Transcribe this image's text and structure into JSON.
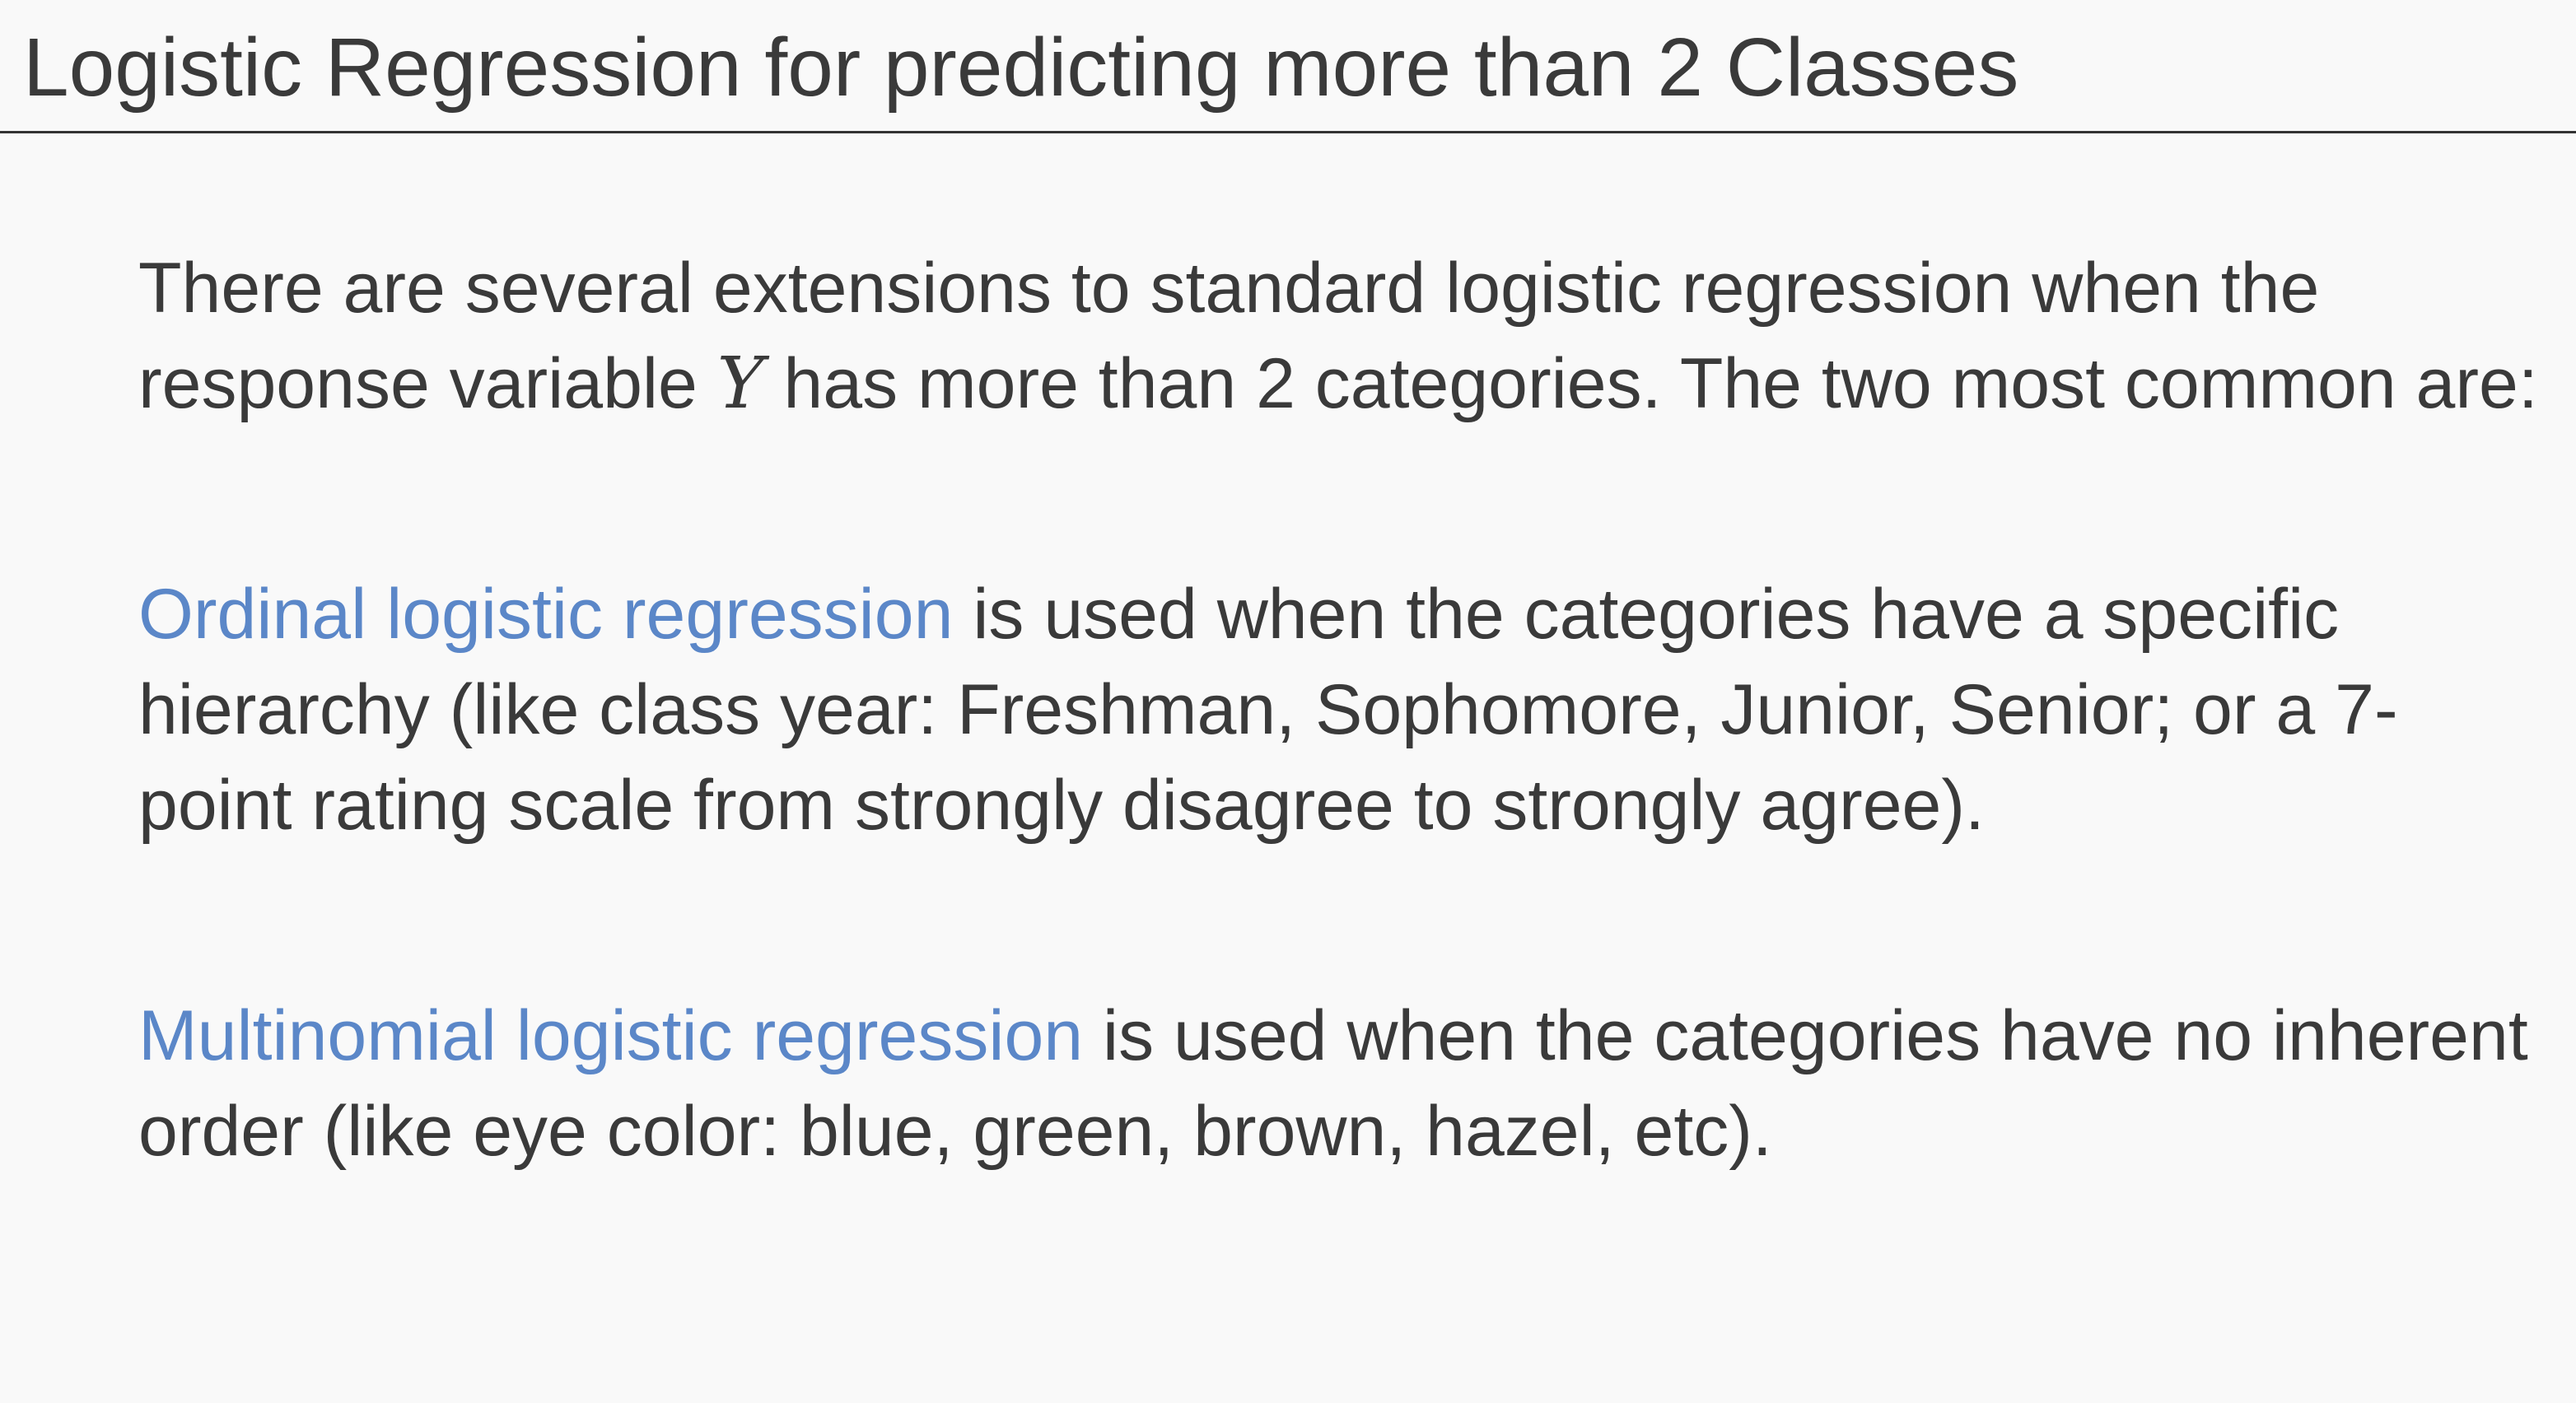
{
  "title": "Logistic Regression for predicting more than 2 Classes",
  "intro": {
    "before_var": "There are several extensions to standard logistic regression when the response variable ",
    "variable": "Y",
    "after_var": " has more than 2 categories. The two most common are:"
  },
  "ordinal": {
    "link_text": "Ordinal logistic regression",
    "description": " is used when the categories have a specific hierarchy (like class year: Freshman, Sophomore, Junior, Senior; or a 7-point rating scale from strongly disagree to strongly agree)."
  },
  "multinomial": {
    "link_text": "Multinomial logistic regression",
    "description": " is used when the categories have no inherent order (like eye color: blue, green, brown, hazel, etc)."
  },
  "colors": {
    "text": "#3a3a3a",
    "link": "#5b87c8",
    "background": "#f9f9f9"
  }
}
